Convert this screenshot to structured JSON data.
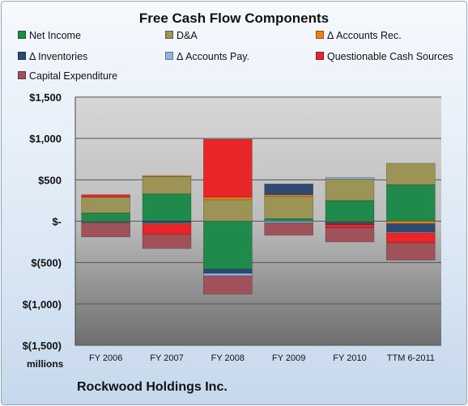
{
  "chart_data": {
    "type": "bar",
    "stacked": true,
    "title": "Free Cash Flow Components",
    "unit_label": "millions",
    "company": "Rockwood Holdings Inc.",
    "categories": [
      "FY 2006",
      "FY 2007",
      "FY 2008",
      "FY 2009",
      "FY 2010",
      "TTM 6-2011"
    ],
    "yticks": [
      "$1,500",
      "$1,000",
      "$500",
      "$-",
      "$(500)",
      "$(1,000)",
      "$(1,500)"
    ],
    "ylim": [
      -1500,
      1500
    ],
    "legend_position": "top",
    "series": [
      {
        "name": "Net Income",
        "color": "#1f8a4c",
        "values": [
          100,
          330,
          -580,
          30,
          250,
          440
        ]
      },
      {
        "name": "D&A",
        "color": "#9c9456",
        "values": [
          190,
          210,
          260,
          270,
          260,
          260
        ]
      },
      {
        "name": "Δ Accounts Rec.",
        "color": "#e8821a",
        "values": [
          -10,
          10,
          30,
          20,
          -10,
          -30
        ]
      },
      {
        "name": "Δ Inventories",
        "color": "#2f4a72",
        "values": [
          -10,
          -20,
          -50,
          130,
          -30,
          -100
        ]
      },
      {
        "name": "Δ Accounts Pay.",
        "color": "#8fb4e0",
        "values": [
          -10,
          -10,
          -30,
          -20,
          20,
          -10
        ]
      },
      {
        "name": "Questionable Cash Sources",
        "color": "#e8262a",
        "values": [
          30,
          -130,
          700,
          0,
          -40,
          -120
        ]
      },
      {
        "name": "Capital Expenditure",
        "color": "#a0525a",
        "values": [
          -160,
          -170,
          -220,
          -150,
          -170,
          -210
        ]
      }
    ]
  }
}
